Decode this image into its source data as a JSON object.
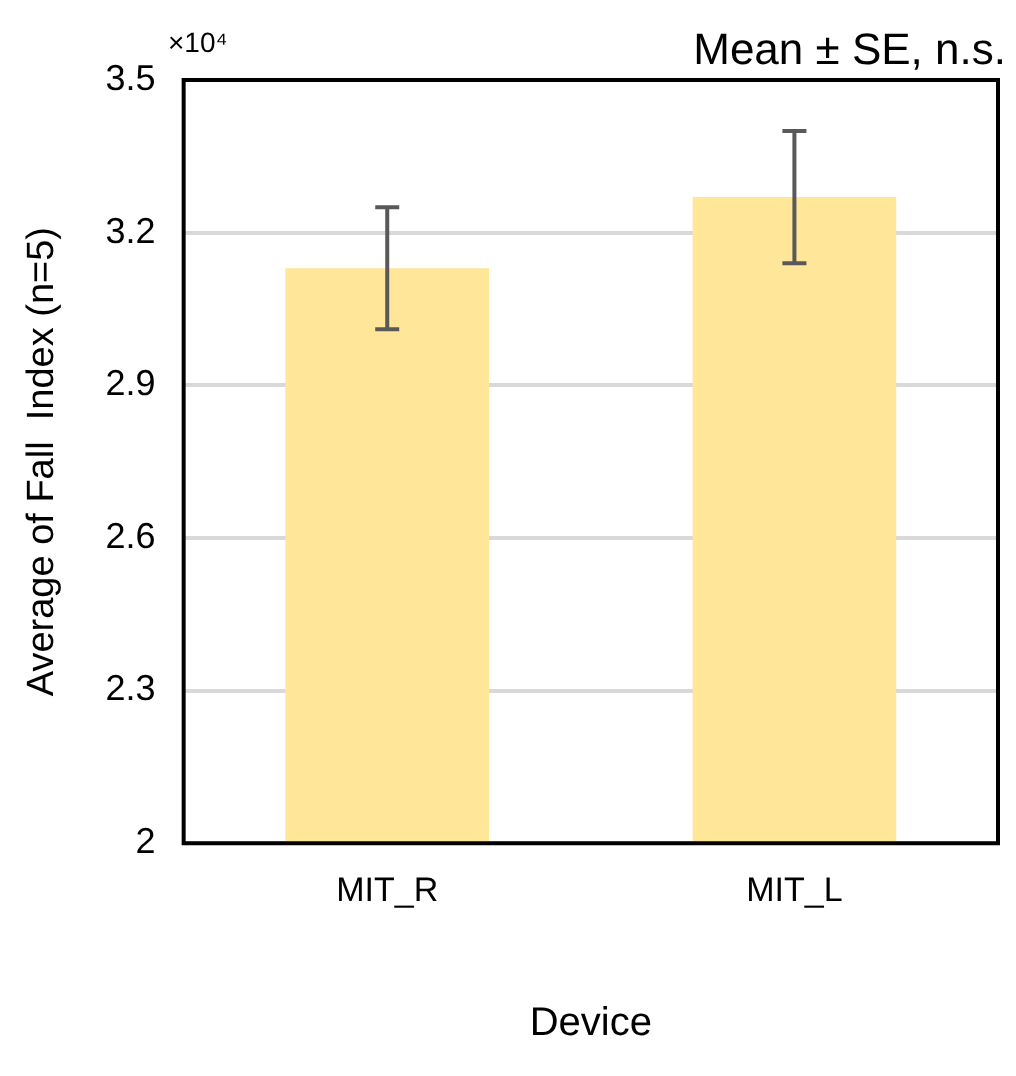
{
  "chart_data": {
    "type": "bar",
    "xlabel": "Device",
    "ylabel": "Average of Fall  Index (n=5)",
    "annotations": [
      "×10⁴",
      "Mean ± SE, n.s."
    ],
    "categories": [
      "MIT_R",
      "MIT_L"
    ],
    "values": [
      3.13,
      3.27
    ],
    "errors": [
      0.12,
      0.13
    ],
    "color": "#ffe699",
    "ylim": [
      2,
      3.5
    ],
    "yticks": [
      2,
      2.3,
      2.6,
      2.9,
      3.2,
      3.5
    ],
    "grid": "y"
  }
}
